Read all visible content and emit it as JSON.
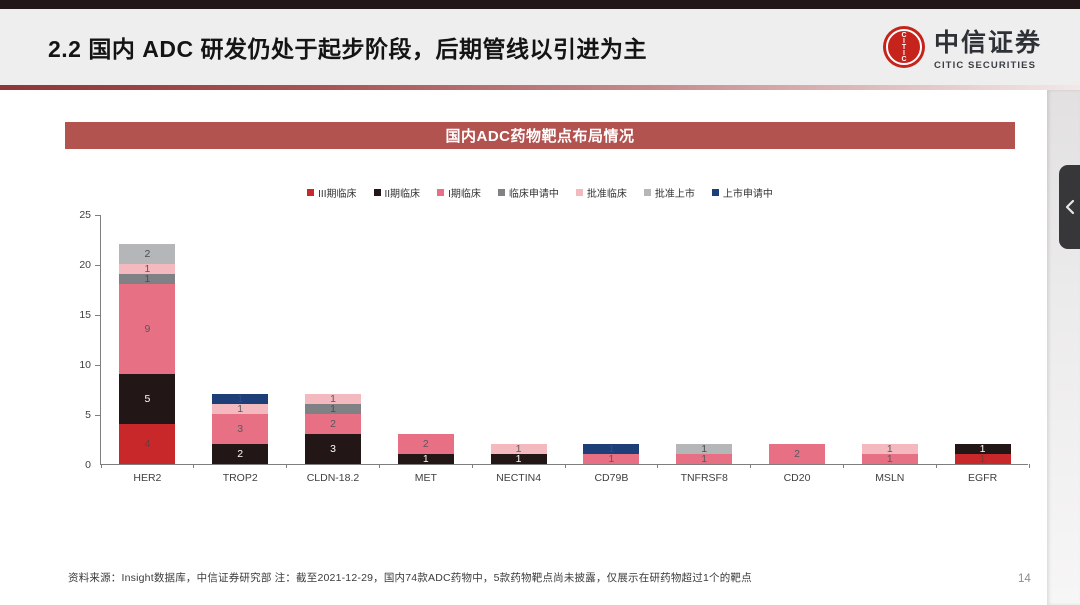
{
  "header": {
    "title": "2.2 国内 ADC 研发仍处于起步阶段，后期管线以引进为主",
    "logo": {
      "cn_name": "中信证券",
      "en_name": "CITIC SECURITIES",
      "emblem_text": "CITIC",
      "brand_color": "#c5231c"
    }
  },
  "banner": {
    "title": "国内ADC药物靶点布局情况",
    "bg_color": "#b25350"
  },
  "chart_data": {
    "type": "bar",
    "stacked": true,
    "title": "国内ADC药物靶点布局情况",
    "xlabel": "",
    "ylabel": "",
    "ylim": [
      0,
      25
    ],
    "yticks": [
      0,
      5,
      10,
      15,
      20,
      25
    ],
    "grid": false,
    "legend_position": "top-center",
    "axis_color": "#7e7e7e",
    "categories": [
      "HER2",
      "TROP2",
      "CLDN-18.2",
      "MET",
      "NECTIN4",
      "CD79B",
      "TNFRSF8",
      "CD20",
      "MSLN",
      "EGFR"
    ],
    "series": [
      {
        "name": "III期临床",
        "color": "#c9282a",
        "label_color": "#6b3a3c",
        "values": [
          4,
          0,
          0,
          0,
          0,
          0,
          0,
          0,
          0,
          1
        ]
      },
      {
        "name": "II期临床",
        "color": "#221617",
        "label_color": "#ffffff",
        "values": [
          5,
          2,
          3,
          1,
          1,
          0,
          0,
          0,
          0,
          1
        ]
      },
      {
        "name": "I期临床",
        "color": "#e87084",
        "label_color": "#58595b",
        "values": [
          9,
          3,
          2,
          2,
          0,
          1,
          1,
          2,
          1,
          0
        ]
      },
      {
        "name": "临床申请中",
        "color": "#7f8184",
        "label_color": "#4c4d4f",
        "values": [
          1,
          0,
          1,
          0,
          0,
          0,
          0,
          0,
          0,
          0
        ]
      },
      {
        "name": "批准临床",
        "color": "#f4b9be",
        "label_color": "#58595b",
        "values": [
          1,
          1,
          1,
          0,
          1,
          0,
          0,
          0,
          1,
          0
        ]
      },
      {
        "name": "批准上市",
        "color": "#b5b6b8",
        "label_color": "#4c4d4f",
        "values": [
          2,
          0,
          0,
          0,
          0,
          0,
          1,
          0,
          0,
          0
        ]
      },
      {
        "name": "上市申请中",
        "color": "#1e3e78",
        "label_color": "#2e4c8c",
        "values": [
          0,
          1,
          0,
          0,
          0,
          1,
          0,
          0,
          0,
          0
        ]
      }
    ],
    "totals": {
      "HER2": 22,
      "TROP2": 7,
      "CLDN-18.2": 7,
      "MET": 3,
      "NECTIN4": 2,
      "CD79B": 2,
      "TNFRSF8": 2,
      "CD20": 2,
      "MSLN": 2,
      "EGFR": 2
    }
  },
  "footer": {
    "source_note": "资料来源：Insight数据库，中信证券研究部  注：截至2021-12-29，国内74款ADC药物中，5款药物靶点尚未披露，仅展示在研药物超过1个的靶点",
    "page_number": "14"
  }
}
